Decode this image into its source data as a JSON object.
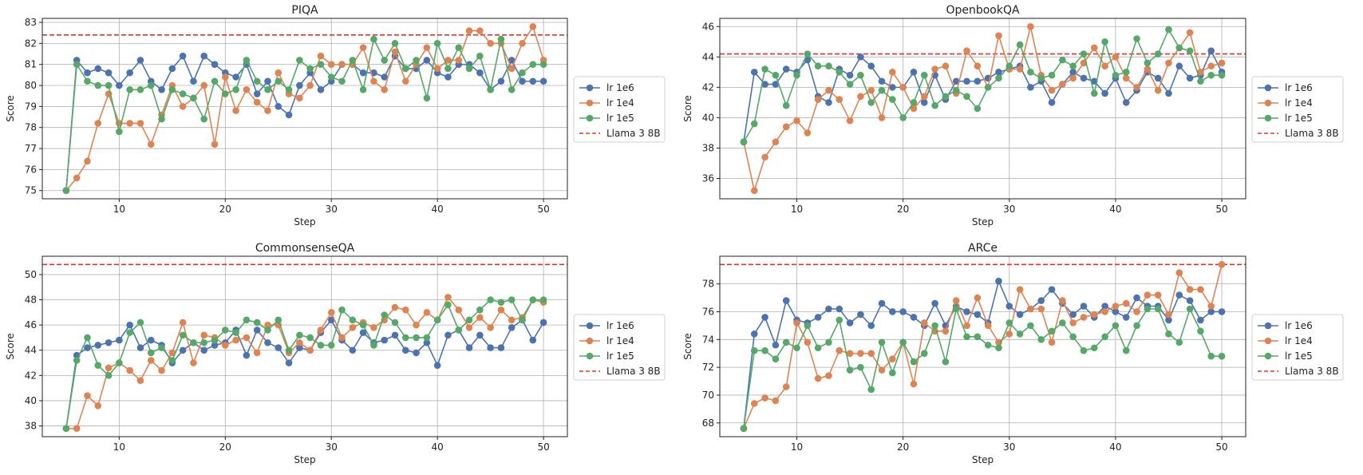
{
  "chart_data": [
    {
      "type": "line",
      "title": "PIQA",
      "xlabel": "Step",
      "ylabel": "Score",
      "xlim": [
        2.75,
        52.25
      ],
      "ylim": [
        74.61,
        83.19
      ],
      "xticks": [
        10,
        20,
        30,
        40,
        50
      ],
      "yticks": [
        75,
        76,
        77,
        78,
        79,
        80,
        81,
        82,
        83
      ],
      "grid": true,
      "legend": "outside-right",
      "x": [
        5,
        6,
        7,
        8,
        9,
        10,
        11,
        12,
        13,
        14,
        15,
        16,
        17,
        18,
        19,
        20,
        21,
        22,
        23,
        24,
        25,
        26,
        27,
        28,
        29,
        30,
        31,
        32,
        33,
        34,
        35,
        36,
        37,
        38,
        39,
        40,
        41,
        42,
        43,
        44,
        45,
        46,
        47,
        48,
        49,
        50
      ],
      "series": [
        {
          "name": "lr 1e6",
          "color": "#4C72B0",
          "values": [
            75.0,
            81.2,
            80.6,
            80.8,
            80.6,
            80.0,
            80.6,
            81.2,
            80.2,
            79.8,
            80.8,
            81.4,
            80.2,
            81.4,
            81.0,
            80.6,
            80.4,
            81.0,
            79.6,
            80.2,
            79.0,
            78.6,
            80.0,
            80.6,
            79.8,
            80.2,
            81.0,
            81.0,
            80.6,
            80.6,
            80.4,
            81.4,
            80.8,
            80.8,
            81.2,
            80.6,
            80.4,
            81.0,
            81.0,
            80.6,
            79.8,
            80.2,
            81.2,
            80.2,
            80.2,
            80.2
          ]
        },
        {
          "name": "lr 1e4",
          "color": "#DD8452",
          "values": [
            75.0,
            75.6,
            76.4,
            78.2,
            79.6,
            78.2,
            78.2,
            78.2,
            77.2,
            78.6,
            80.0,
            79.0,
            79.4,
            80.0,
            77.2,
            80.4,
            78.8,
            79.8,
            79.2,
            78.8,
            80.6,
            79.6,
            79.4,
            80.0,
            81.4,
            81.0,
            81.0,
            81.0,
            81.8,
            80.2,
            79.8,
            81.6,
            80.2,
            81.0,
            81.8,
            80.8,
            81.2,
            81.2,
            82.6,
            82.6,
            82.0,
            82.0,
            80.8,
            82.0,
            82.8,
            81.2
          ]
        },
        {
          "name": "lr 1e5",
          "color": "#55A868",
          "values": [
            75.0,
            81.0,
            80.2,
            80.0,
            80.0,
            77.8,
            79.8,
            79.8,
            80.0,
            78.4,
            79.8,
            79.6,
            79.4,
            78.4,
            80.2,
            79.6,
            79.8,
            81.2,
            80.2,
            79.8,
            80.2,
            79.8,
            81.2,
            80.8,
            81.0,
            80.4,
            80.2,
            81.2,
            79.8,
            82.2,
            81.2,
            82.0,
            80.8,
            81.2,
            79.4,
            82.0,
            80.8,
            81.8,
            80.8,
            81.4,
            79.8,
            82.2,
            79.8,
            80.6,
            81.0,
            81.0
          ]
        }
      ],
      "reference": {
        "name": "Llama 3 8B",
        "color": "#E8302A",
        "value": 82.4
      }
    },
    {
      "type": "line",
      "title": "OpenbookQA",
      "xlabel": "Step",
      "ylabel": "Score",
      "xlim": [
        2.75,
        52.25
      ],
      "ylim": [
        34.66,
        46.54
      ],
      "xticks": [
        10,
        20,
        30,
        40,
        50
      ],
      "yticks": [
        36,
        38,
        40,
        42,
        44,
        46
      ],
      "grid": true,
      "legend": "outside-right",
      "x": [
        5,
        6,
        7,
        8,
        9,
        10,
        11,
        12,
        13,
        14,
        15,
        16,
        17,
        18,
        19,
        20,
        21,
        22,
        23,
        24,
        25,
        26,
        27,
        28,
        29,
        30,
        31,
        32,
        33,
        34,
        35,
        36,
        37,
        38,
        39,
        40,
        41,
        42,
        43,
        44,
        45,
        46,
        47,
        48,
        49,
        50
      ],
      "series": [
        {
          "name": "lr 1e6",
          "color": "#4C72B0",
          "values": [
            38.4,
            43.0,
            42.2,
            42.2,
            43.2,
            43.0,
            43.8,
            41.4,
            41.0,
            43.2,
            42.8,
            44.0,
            43.4,
            42.4,
            42.0,
            42.0,
            43.0,
            41.0,
            42.8,
            41.2,
            42.4,
            42.4,
            42.4,
            42.6,
            43.0,
            43.2,
            43.4,
            42.0,
            42.4,
            41.0,
            42.2,
            43.0,
            42.6,
            42.4,
            41.6,
            42.6,
            41.0,
            41.8,
            43.0,
            42.6,
            41.6,
            43.4,
            42.6,
            42.8,
            44.4,
            43.0
          ]
        },
        {
          "name": "lr 1e4",
          "color": "#DD8452",
          "values": [
            38.4,
            35.2,
            37.4,
            38.4,
            39.4,
            39.8,
            39.0,
            41.2,
            41.8,
            41.2,
            39.8,
            41.4,
            41.8,
            40.0,
            43.0,
            42.0,
            40.6,
            41.4,
            43.2,
            43.4,
            41.6,
            44.4,
            43.4,
            42.0,
            45.4,
            43.2,
            43.2,
            46.0,
            42.8,
            41.8,
            42.2,
            42.6,
            43.6,
            44.6,
            43.4,
            44.0,
            42.6,
            42.0,
            43.2,
            41.8,
            43.6,
            44.6,
            45.6,
            43.0,
            43.4,
            43.6
          ]
        },
        {
          "name": "lr 1e5",
          "color": "#55A868",
          "values": [
            38.4,
            39.6,
            43.2,
            42.8,
            40.8,
            42.8,
            44.2,
            43.4,
            43.4,
            43.0,
            42.2,
            42.8,
            41.0,
            41.8,
            41.2,
            40.0,
            41.0,
            42.8,
            40.8,
            41.4,
            41.8,
            41.4,
            40.6,
            42.0,
            42.6,
            43.4,
            44.8,
            43.0,
            42.6,
            42.8,
            43.8,
            43.4,
            44.2,
            41.6,
            45.0,
            42.8,
            43.0,
            45.2,
            43.6,
            44.2,
            45.8,
            44.6,
            44.4,
            42.4,
            42.8,
            42.8
          ]
        }
      ],
      "reference": {
        "name": "Llama 3 8B",
        "color": "#E8302A",
        "value": 44.2
      }
    },
    {
      "type": "line",
      "title": "CommonsenseQA",
      "xlabel": "Step",
      "ylabel": "Score",
      "xlim": [
        2.75,
        52.25
      ],
      "ylim": [
        37.15,
        51.45
      ],
      "xticks": [
        10,
        20,
        30,
        40,
        50
      ],
      "yticks": [
        38,
        40,
        42,
        44,
        46,
        48,
        50
      ],
      "grid": true,
      "legend": "outside-right",
      "x": [
        5,
        6,
        7,
        8,
        9,
        10,
        11,
        12,
        13,
        14,
        15,
        16,
        17,
        18,
        19,
        20,
        21,
        22,
        23,
        24,
        25,
        26,
        27,
        28,
        29,
        30,
        31,
        32,
        33,
        34,
        35,
        36,
        37,
        38,
        39,
        40,
        41,
        42,
        43,
        44,
        45,
        46,
        47,
        48,
        49,
        50
      ],
      "series": [
        {
          "name": "lr 1e6",
          "color": "#4C72B0",
          "values": [
            37.8,
            43.6,
            44.2,
            44.4,
            44.6,
            44.8,
            46.0,
            44.2,
            44.8,
            44.4,
            43.0,
            44.0,
            44.6,
            44.0,
            44.4,
            44.6,
            45.6,
            43.6,
            45.6,
            44.6,
            44.2,
            43.0,
            44.2,
            44.0,
            45.4,
            46.4,
            44.8,
            44.0,
            45.4,
            44.6,
            44.8,
            45.2,
            44.0,
            43.8,
            44.6,
            42.8,
            45.2,
            45.6,
            44.2,
            45.2,
            44.2,
            44.2,
            45.8,
            46.4,
            44.8,
            46.2
          ]
        },
        {
          "name": "lr 1e4",
          "color": "#DD8452",
          "values": [
            37.8,
            37.8,
            40.4,
            39.6,
            42.6,
            43.0,
            42.4,
            41.6,
            43.2,
            42.4,
            43.8,
            46.2,
            43.0,
            45.2,
            45.0,
            44.4,
            44.8,
            45.0,
            43.8,
            46.0,
            46.0,
            43.8,
            44.6,
            44.0,
            45.6,
            47.0,
            45.0,
            45.8,
            46.2,
            45.8,
            46.4,
            47.4,
            47.2,
            46.0,
            47.0,
            46.4,
            48.2,
            47.2,
            45.8,
            46.6,
            45.8,
            47.2,
            46.4,
            46.6,
            48.0,
            47.8
          ]
        },
        {
          "name": "lr 1e5",
          "color": "#55A868",
          "values": [
            37.8,
            43.2,
            45.0,
            42.8,
            42.0,
            43.0,
            45.4,
            46.2,
            43.8,
            44.2,
            43.2,
            45.2,
            44.6,
            44.6,
            44.8,
            45.6,
            45.4,
            46.4,
            46.2,
            45.6,
            46.4,
            44.0,
            45.2,
            45.0,
            44.4,
            44.4,
            47.2,
            46.4,
            46.0,
            44.4,
            46.8,
            46.2,
            45.0,
            45.0,
            45.0,
            46.4,
            47.6,
            45.6,
            46.4,
            47.2,
            48.0,
            47.8,
            48.0,
            46.4,
            48.0,
            48.0
          ]
        }
      ],
      "reference": {
        "name": "Llama 3 8B",
        "color": "#E8302A",
        "value": 50.8
      }
    },
    {
      "type": "line",
      "title": "ARCe",
      "xlabel": "Step",
      "ylabel": "Score",
      "xlim": [
        2.75,
        52.25
      ],
      "ylim": [
        67.01,
        79.99
      ],
      "xticks": [
        10,
        20,
        30,
        40,
        50
      ],
      "yticks": [
        68,
        70,
        72,
        74,
        76,
        78
      ],
      "grid": true,
      "legend": "outside-right",
      "x": [
        5,
        6,
        7,
        8,
        9,
        10,
        11,
        12,
        13,
        14,
        15,
        16,
        17,
        18,
        19,
        20,
        21,
        22,
        23,
        24,
        25,
        26,
        27,
        28,
        29,
        30,
        31,
        32,
        33,
        34,
        35,
        36,
        37,
        38,
        39,
        40,
        41,
        42,
        43,
        44,
        45,
        46,
        47,
        48,
        49,
        50
      ],
      "series": [
        {
          "name": "lr 1e6",
          "color": "#4C72B0",
          "values": [
            67.6,
            74.4,
            75.6,
            73.6,
            76.8,
            75.4,
            75.2,
            75.6,
            76.2,
            76.2,
            75.2,
            75.8,
            75.0,
            76.6,
            76.0,
            76.0,
            75.6,
            75.0,
            76.6,
            75.0,
            76.4,
            76.0,
            75.8,
            75.2,
            78.2,
            76.4,
            75.8,
            76.2,
            76.8,
            77.6,
            76.6,
            75.8,
            76.4,
            75.6,
            76.4,
            76.0,
            75.6,
            77.0,
            76.4,
            76.4,
            75.4,
            77.2,
            76.8,
            75.4,
            76.0,
            76.0
          ]
        },
        {
          "name": "lr 1e4",
          "color": "#DD8452",
          "values": [
            67.6,
            69.4,
            69.8,
            69.6,
            70.6,
            75.2,
            73.8,
            71.2,
            71.4,
            73.2,
            73.0,
            73.0,
            73.0,
            71.8,
            72.6,
            73.8,
            70.8,
            75.2,
            74.6,
            74.6,
            76.8,
            75.0,
            77.0,
            75.0,
            73.8,
            74.4,
            77.6,
            76.2,
            76.2,
            73.8,
            76.8,
            75.2,
            75.6,
            75.8,
            76.0,
            76.4,
            76.6,
            76.0,
            77.2,
            77.2,
            75.8,
            78.8,
            77.6,
            77.6,
            76.4,
            79.4
          ]
        },
        {
          "name": "lr 1e5",
          "color": "#55A868",
          "values": [
            67.6,
            73.2,
            73.2,
            72.6,
            73.8,
            73.4,
            75.0,
            73.4,
            73.8,
            75.4,
            71.8,
            72.0,
            70.4,
            73.8,
            71.6,
            73.8,
            72.4,
            73.0,
            75.0,
            72.4,
            76.2,
            74.2,
            74.2,
            73.6,
            73.4,
            75.2,
            74.4,
            75.0,
            74.0,
            74.6,
            75.2,
            74.2,
            73.2,
            73.4,
            74.2,
            75.0,
            73.2,
            75.0,
            76.2,
            76.2,
            74.4,
            73.8,
            76.2,
            74.6,
            72.8,
            72.8
          ]
        }
      ],
      "reference": {
        "name": "Llama 3 8B",
        "color": "#E8302A",
        "value": 79.4
      }
    }
  ]
}
